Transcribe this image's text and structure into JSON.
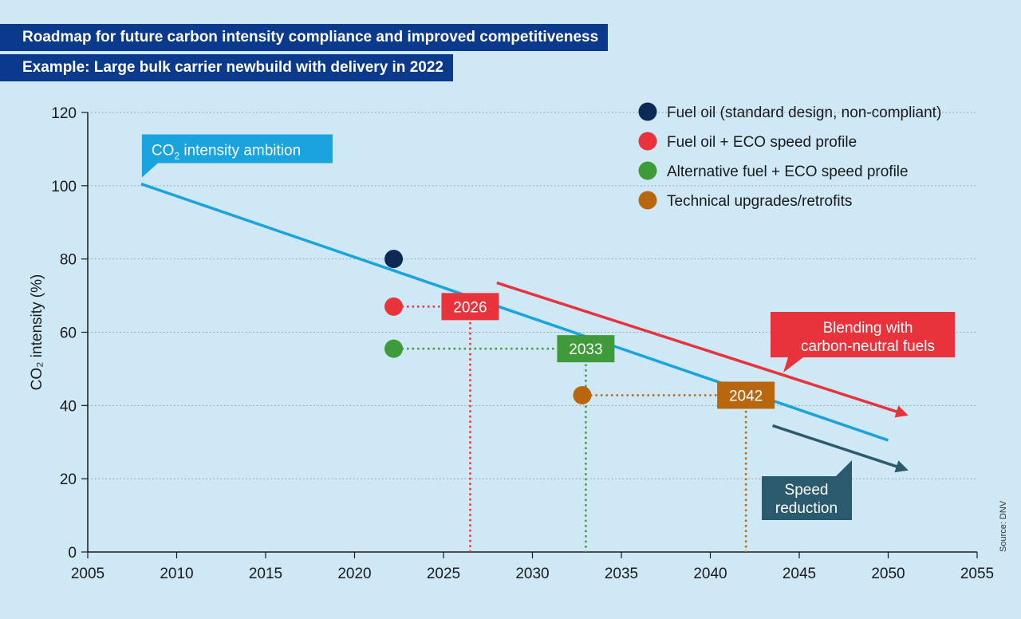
{
  "header": {
    "title": "Roadmap for future carbon intensity compliance and improved competitiveness",
    "subtitle": "Example: Large bulk carrier newbuild with delivery in 2022"
  },
  "source": "Source: DNV",
  "colors": {
    "navy": "#0d2a57",
    "red": "#e8323c",
    "green": "#3f9a3a",
    "orange": "#b8670e",
    "blue": "#1aa3dd",
    "teal": "#2b5a6e",
    "banner": "#0b3a8c"
  },
  "chart_data": {
    "type": "line",
    "ylabel": "CO₂ intensity (%)",
    "xlim": [
      2005,
      2055
    ],
    "ylim": [
      0,
      120
    ],
    "x_ticks": [
      2005,
      2010,
      2015,
      2020,
      2025,
      2030,
      2035,
      2040,
      2045,
      2050,
      2055
    ],
    "y_ticks": [
      0,
      20,
      40,
      60,
      80,
      100,
      120
    ],
    "grid": "horizontal dotted",
    "legend_position": "top-right",
    "ambition_line": {
      "label_main": "CO",
      "label_sub": "2",
      "label_rest": " intensity ambition",
      "points": [
        [
          2008,
          100.5
        ],
        [
          2050,
          30.5
        ]
      ]
    },
    "legend": [
      {
        "label": "Fuel oil (standard design, non-compliant)",
        "color": "navy"
      },
      {
        "label": "Fuel oil + ECO speed profile",
        "color": "red"
      },
      {
        "label": "Alternative fuel + ECO speed profile",
        "color": "green"
      },
      {
        "label": "Technical upgrades/retrofits",
        "color": "orange"
      }
    ],
    "points": [
      {
        "name": "fuel-oil",
        "x": 2022.2,
        "y": 80,
        "color": "navy"
      },
      {
        "name": "fuel-oil-eco",
        "x": 2022.2,
        "y": 67,
        "color": "red",
        "compliance_year": 2026.5,
        "label": "2026"
      },
      {
        "name": "alt-fuel-eco",
        "x": 2022.2,
        "y": 55.5,
        "color": "green",
        "compliance_year": 2033,
        "label": "2033"
      },
      {
        "name": "retrofits",
        "x": 2032.8,
        "y": 42.8,
        "color": "orange",
        "compliance_year": 2042,
        "label": "2042"
      }
    ],
    "annotations": [
      {
        "name": "blending-arrow",
        "from": [
          2028,
          73.5
        ],
        "to": [
          2051,
          37.5
        ],
        "color": "red",
        "lines": [
          "Blending with",
          "carbon-neutral fuels"
        ]
      },
      {
        "name": "speed-arrow",
        "from": [
          2043.5,
          34.5
        ],
        "to": [
          2051,
          22.5
        ],
        "color": "teal",
        "lines": [
          "Speed",
          "reduction"
        ]
      }
    ]
  }
}
